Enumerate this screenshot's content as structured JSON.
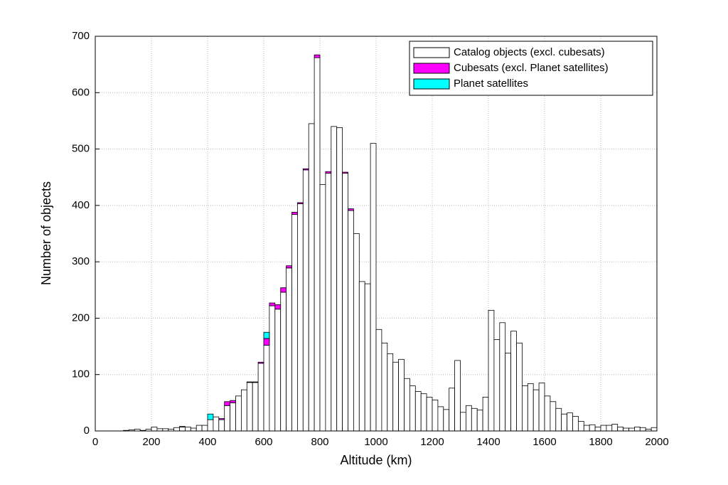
{
  "chart_data": {
    "type": "histogram",
    "x_label": "Altitude (km)",
    "y_label": "Number of objects",
    "bins": [
      0,
      20,
      40,
      60,
      80,
      100,
      120,
      140,
      160,
      180,
      200,
      220,
      240,
      260,
      280,
      300,
      320,
      340,
      360,
      380,
      400,
      420,
      440,
      460,
      480,
      500,
      520,
      540,
      560,
      580,
      600,
      620,
      640,
      660,
      680,
      700,
      720,
      740,
      760,
      780,
      800,
      820,
      840,
      860,
      880,
      900,
      920,
      940,
      960,
      980,
      1000,
      1020,
      1040,
      1060,
      1080,
      1100,
      1120,
      1140,
      1160,
      1180,
      1200,
      1220,
      1240,
      1260,
      1280,
      1300,
      1320,
      1340,
      1360,
      1380,
      1400,
      1420,
      1440,
      1460,
      1480,
      1500,
      1520,
      1540,
      1560,
      1580,
      1600,
      1620,
      1640,
      1660,
      1680,
      1700,
      1720,
      1740,
      1760,
      1780,
      1800,
      1820,
      1840,
      1860,
      1880,
      1900,
      1920,
      1940,
      1960,
      1980,
      2000
    ],
    "series": [
      {
        "name": "Catalog objects (excl. cubesats)",
        "color": "#ffffff",
        "values": [
          0,
          0,
          0,
          0,
          0,
          1,
          2,
          3,
          1,
          3,
          7,
          4,
          4,
          3,
          6,
          7,
          7,
          5,
          10,
          10,
          20,
          25,
          20,
          45,
          50,
          62,
          73,
          86,
          86,
          120,
          152,
          222,
          216,
          246,
          289,
          384,
          403,
          463,
          545,
          662,
          437,
          457,
          540,
          538,
          457,
          391,
          350,
          265,
          261,
          510,
          180,
          156,
          137,
          122,
          127,
          93,
          80,
          70,
          66,
          60,
          55,
          43,
          38,
          76,
          125,
          33,
          45,
          40,
          37,
          60,
          214,
          162,
          192,
          138,
          177,
          156,
          80,
          84,
          73,
          85,
          62,
          52,
          40,
          30,
          32,
          26,
          17,
          10,
          11,
          7,
          10,
          10,
          12,
          7,
          5,
          5,
          7,
          6,
          3,
          6
        ]
      },
      {
        "name": "Cubesats (excl. Planet satellites)",
        "color": "#ff00ff",
        "values": [
          0,
          0,
          0,
          0,
          0,
          0,
          0,
          0,
          0,
          0,
          0,
          0,
          0,
          0,
          0,
          0,
          0,
          0,
          0,
          0,
          0,
          0,
          2,
          7,
          4,
          0,
          0,
          1,
          1,
          2,
          12,
          5,
          8,
          8,
          4,
          4,
          2,
          2,
          0,
          5,
          0,
          3,
          0,
          0,
          2,
          3,
          0,
          0,
          0,
          0,
          0,
          0,
          0,
          0,
          0,
          0,
          0,
          0,
          0,
          0,
          0,
          0,
          0,
          0,
          0,
          0,
          0,
          0,
          0,
          0,
          0,
          0,
          0,
          0,
          0,
          0,
          0,
          0,
          0,
          0,
          0,
          0,
          0,
          0,
          0,
          0,
          0,
          0,
          0,
          0,
          0,
          0,
          0,
          0,
          0,
          0,
          0,
          0,
          0,
          0
        ]
      },
      {
        "name": "Planet satellites",
        "color": "#00ffff",
        "values": [
          0,
          0,
          0,
          0,
          0,
          0,
          0,
          0,
          0,
          0,
          0,
          0,
          0,
          0,
          0,
          1,
          0,
          0,
          0,
          0,
          10,
          0,
          0,
          0,
          0,
          0,
          0,
          0,
          0,
          0,
          11,
          0,
          0,
          0,
          0,
          0,
          0,
          0,
          0,
          0,
          0,
          0,
          0,
          0,
          0,
          0,
          0,
          0,
          0,
          0,
          0,
          0,
          0,
          0,
          0,
          0,
          0,
          0,
          0,
          0,
          0,
          0,
          0,
          0,
          0,
          0,
          0,
          0,
          0,
          0,
          0,
          0,
          0,
          0,
          0,
          0,
          0,
          0,
          0,
          0,
          0,
          0,
          0,
          0,
          0,
          0,
          0,
          0,
          0,
          0,
          0,
          0,
          0,
          0,
          0,
          0,
          0,
          0,
          0,
          0
        ]
      }
    ],
    "xlim": [
      0,
      2000
    ],
    "xticks": [
      0,
      200,
      400,
      600,
      800,
      1000,
      1200,
      1400,
      1600,
      1800,
      2000
    ],
    "ylim": [
      0,
      700
    ],
    "yticks": [
      0,
      100,
      200,
      300,
      400,
      500,
      600,
      700
    ],
    "grid": true,
    "legend": "upper right"
  }
}
